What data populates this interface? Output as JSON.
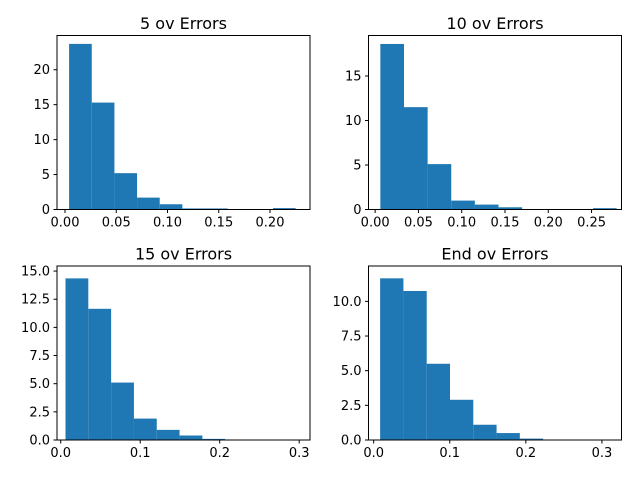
{
  "figure": {
    "background": "#ffffff",
    "bar_color": "#1f77b4",
    "axis_color": "#000000",
    "text_color": "#000000"
  },
  "chart_data": [
    {
      "type": "bar",
      "subtype": "histogram-density",
      "title": "5 ov Errors",
      "xlabel": "",
      "ylabel": "",
      "grid": false,
      "legend": "none",
      "bins": {
        "start": 0.004,
        "width": 0.0221,
        "count": 10
      },
      "densities": [
        23.7,
        15.3,
        5.2,
        1.7,
        0.75,
        0.15,
        0.15,
        0,
        0,
        0.2
      ],
      "xlim": [
        -0.0078,
        0.239
      ],
      "ylim": [
        0,
        24.9
      ],
      "xticks": {
        "values": [
          0.0,
          0.05,
          0.1,
          0.15,
          0.2
        ],
        "labels": [
          "0.00",
          "0.05",
          "0.10",
          "0.15",
          "0.20"
        ]
      },
      "yticks": {
        "values": [
          0,
          5,
          10,
          15,
          20
        ],
        "labels": [
          "0",
          "5",
          "10",
          "15",
          "20"
        ]
      }
    },
    {
      "type": "bar",
      "subtype": "histogram-density",
      "title": "10 ov Errors",
      "xlabel": "",
      "ylabel": "",
      "grid": false,
      "legend": "none",
      "bins": {
        "start": 0.006,
        "width": 0.0273,
        "count": 10
      },
      "densities": [
        18.6,
        11.5,
        5.1,
        1.0,
        0.55,
        0.25,
        0,
        0,
        0,
        0.15
      ],
      "xlim": [
        -0.0077,
        0.2846
      ],
      "ylim": [
        0,
        19.55
      ],
      "xticks": {
        "values": [
          0.0,
          0.05,
          0.1,
          0.15,
          0.2,
          0.25
        ],
        "labels": [
          "0.00",
          "0.05",
          "0.10",
          "0.15",
          "0.20",
          "0.25"
        ]
      },
      "yticks": {
        "values": [
          0,
          5,
          10,
          15
        ],
        "labels": [
          "0",
          "5",
          "10",
          "15"
        ]
      }
    },
    {
      "type": "bar",
      "subtype": "histogram-density",
      "title": "15 ov Errors",
      "xlabel": "",
      "ylabel": "",
      "grid": false,
      "legend": "none",
      "bins": {
        "start": 0.006,
        "width": 0.0287,
        "count": 10
      },
      "densities": [
        14.35,
        11.65,
        5.1,
        1.9,
        0.9,
        0.4,
        0.1,
        0,
        0,
        0.02
      ],
      "xlim": [
        -0.0047,
        0.3136
      ],
      "ylim": [
        0,
        15.45
      ],
      "xticks": {
        "values": [
          0.0,
          0.1,
          0.2,
          0.3
        ],
        "labels": [
          "0.0",
          "0.1",
          "0.2",
          "0.3"
        ]
      },
      "yticks": {
        "values": [
          0,
          2.5,
          5,
          7.5,
          10,
          12.5,
          15
        ],
        "labels": [
          "0.0",
          "2.5",
          "5.0",
          "7.5",
          "10.0",
          "12.5",
          "15.0"
        ]
      }
    },
    {
      "type": "bar",
      "subtype": "histogram-density",
      "title": "End ov Errors",
      "xlabel": "",
      "ylabel": "",
      "grid": false,
      "legend": "none",
      "bins": {
        "start": 0.0085,
        "width": 0.0306,
        "count": 10
      },
      "densities": [
        11.66,
        10.75,
        5.5,
        2.9,
        1.1,
        0.5,
        0.1,
        0,
        0,
        0.02
      ],
      "xlim": [
        -0.0068,
        0.3257
      ],
      "ylim": [
        0,
        12.55
      ],
      "xticks": {
        "values": [
          0.0,
          0.1,
          0.2,
          0.3
        ],
        "labels": [
          "0.0",
          "0.1",
          "0.2",
          "0.3"
        ]
      },
      "yticks": {
        "values": [
          0,
          2.5,
          5,
          7.5,
          10
        ],
        "labels": [
          "0.0",
          "2.5",
          "5.0",
          "7.5",
          "10.0"
        ]
      }
    }
  ]
}
